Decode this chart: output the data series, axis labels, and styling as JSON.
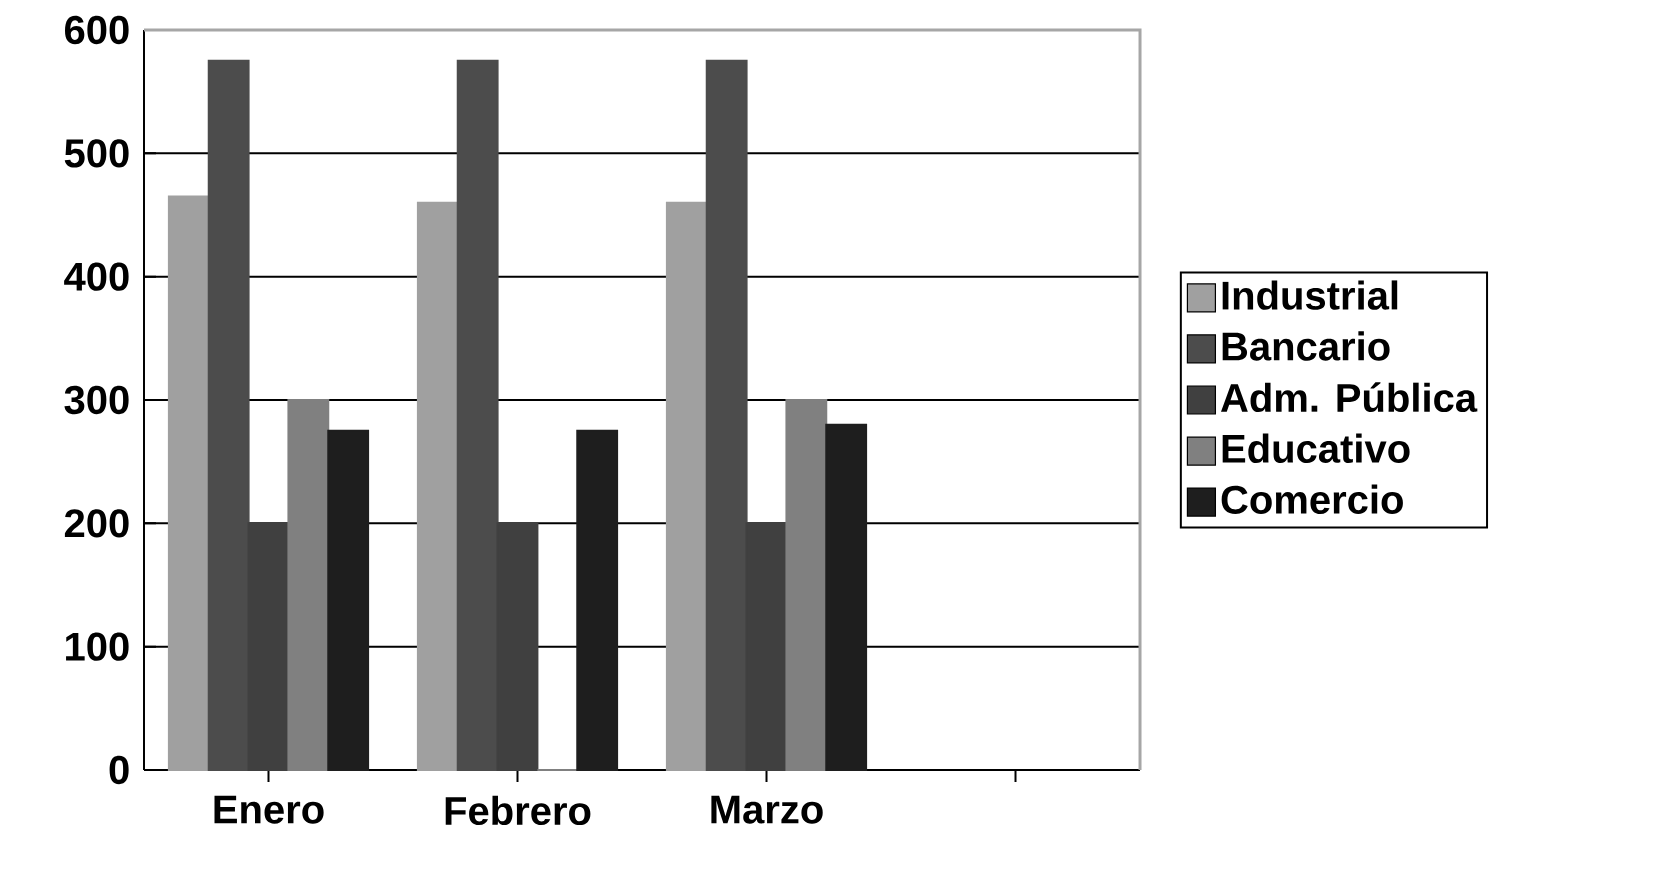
{
  "chart_data": {
    "type": "bar",
    "categories": [
      "Enero",
      "Febrero",
      "Marzo",
      null
    ],
    "series": [
      {
        "name": "Industrial",
        "color": "#a0a0a0",
        "values": [
          465,
          460,
          460,
          null
        ]
      },
      {
        "name": "Bancario",
        "color": "#4c4c4c",
        "values": [
          575,
          575,
          575,
          null
        ]
      },
      {
        "name": "Adm. Pública",
        "color": "#404040",
        "values": [
          200,
          200,
          200,
          null
        ]
      },
      {
        "name": "Educativo",
        "color": "#808080",
        "values": [
          300,
          0,
          300,
          null
        ]
      },
      {
        "name": "Comercio",
        "color": "#1e1e1e",
        "values": [
          275,
          275,
          280,
          null
        ]
      }
    ],
    "ylim": [
      0,
      600
    ],
    "yticks": [
      0,
      100,
      200,
      300,
      400,
      500,
      600
    ],
    "grid": "y",
    "legend": "right"
  }
}
